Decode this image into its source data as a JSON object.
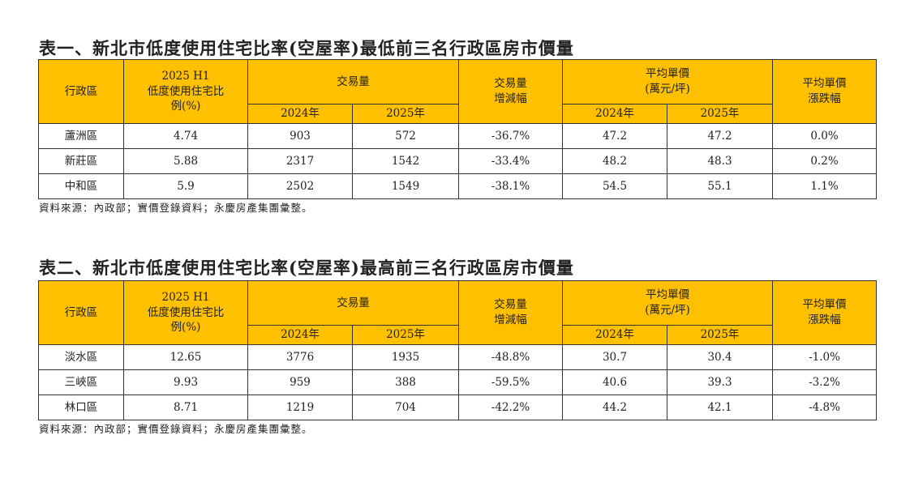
{
  "headers": {
    "district": "行政區",
    "ratio_l1": "2025 H1",
    "ratio_l2": "低度使用住宅比",
    "ratio_l3": "例(%)",
    "volume": "交易量",
    "y2024": "2024年",
    "y2025": "2025年",
    "vol_change_l1": "交易量",
    "vol_change_l2": "增減幅",
    "price_l1": "平均單價",
    "price_l2": "(萬元/坪)",
    "price_change_l1": "平均單價",
    "price_change_l2": "漲跌幅"
  },
  "tables": [
    {
      "title": "表一、新北市低度使用住宅比率(空屋率)最低前三名行政區房市價量",
      "source": "資料來源：內政部；實價登錄資料；永慶房產集團彙整。",
      "rows": [
        [
          "蘆洲區",
          "4.74",
          "903",
          "572",
          "-36.7%",
          "47.2",
          "47.2",
          "0.0%"
        ],
        [
          "新莊區",
          "5.88",
          "2317",
          "1542",
          "-33.4%",
          "48.2",
          "48.3",
          "0.2%"
        ],
        [
          "中和區",
          "5.9",
          "2502",
          "1549",
          "-38.1%",
          "54.5",
          "55.1",
          "1.1%"
        ]
      ]
    },
    {
      "title": "表二、新北市低度使用住宅比率(空屋率)最高前三名行政區房市價量",
      "source": "資料來源：內政部；實價登錄資料；永慶房產集團彙整。",
      "rows": [
        [
          "淡水區",
          "12.65",
          "3776",
          "1935",
          "-48.8%",
          "30.7",
          "30.4",
          "-1.0%"
        ],
        [
          "三峽區",
          "9.93",
          "959",
          "388",
          "-59.5%",
          "40.6",
          "39.3",
          "-3.2%"
        ],
        [
          "林口區",
          "8.71",
          "1219",
          "704",
          "-42.2%",
          "44.2",
          "42.1",
          "-4.8%"
        ]
      ]
    }
  ],
  "colors": {
    "header": "#ffc000"
  }
}
